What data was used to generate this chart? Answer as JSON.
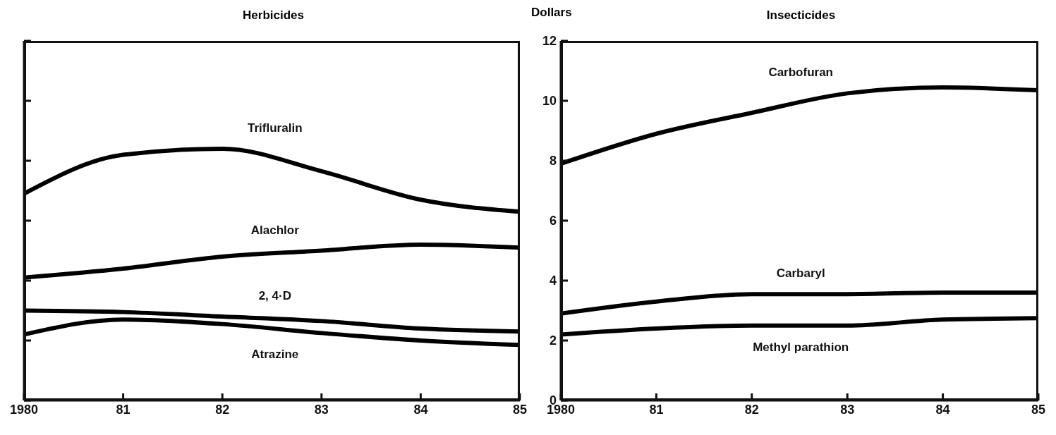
{
  "chart_data": [
    {
      "type": "line",
      "title": "Herbicides",
      "x": [
        1980,
        1981,
        1982,
        1983,
        1984,
        1985
      ],
      "xlim": [
        1980,
        1985
      ],
      "xticks": [
        1980,
        {
          "value": 1981,
          "label": "81"
        },
        {
          "value": 1982,
          "label": "82"
        },
        {
          "value": 1983,
          "label": "83"
        },
        {
          "value": 1984,
          "label": "84"
        },
        {
          "value": 1985,
          "label": "85"
        }
      ],
      "ylim": [
        0,
        12
      ],
      "yticks": [
        0,
        2,
        4,
        6,
        8,
        10,
        12
      ],
      "tick_labels": "x",
      "grid": false,
      "legend": false,
      "marker": "none",
      "line_style": "solid",
      "series": [
        {
          "name": "Trifluralin",
          "color": "#000000",
          "values": [
            6.9,
            8.2,
            8.4,
            7.65,
            6.7,
            6.3
          ]
        },
        {
          "name": "Alachlor",
          "color": "#000000",
          "values": [
            4.1,
            4.4,
            4.8,
            5.0,
            5.2,
            5.1
          ]
        },
        {
          "name": "2, 4·D",
          "color": "#000000",
          "values": [
            3.0,
            2.95,
            2.8,
            2.65,
            2.4,
            2.3
          ]
        },
        {
          "name": "Atrazine",
          "color": "#000000",
          "values": [
            2.2,
            2.7,
            2.55,
            2.25,
            2.0,
            1.85
          ]
        }
      ]
    },
    {
      "type": "line",
      "title": "Insecticides",
      "ylabel": "Dollars",
      "x": [
        1980,
        1981,
        1982,
        1983,
        1984,
        1985
      ],
      "xlim": [
        1980,
        1985
      ],
      "xticks": [
        1980,
        {
          "value": 1981,
          "label": "81"
        },
        {
          "value": 1982,
          "label": "82"
        },
        {
          "value": 1983,
          "label": "83"
        },
        {
          "value": 1984,
          "label": "84"
        },
        {
          "value": 1985,
          "label": "85"
        }
      ],
      "ylim": [
        0,
        12
      ],
      "yticks": [
        0,
        2,
        4,
        6,
        8,
        10,
        12
      ],
      "grid": false,
      "legend": false,
      "marker": "none",
      "line_style": "solid",
      "series": [
        {
          "name": "Carbofuran",
          "color": "#000000",
          "values": [
            7.9,
            8.9,
            9.6,
            10.25,
            10.45,
            10.35
          ]
        },
        {
          "name": "Carbaryl",
          "color": "#000000",
          "values": [
            2.9,
            3.3,
            3.55,
            3.55,
            3.6,
            3.6
          ]
        },
        {
          "name": "Methyl parathion",
          "color": "#000000",
          "values": [
            2.2,
            2.4,
            2.5,
            2.5,
            2.7,
            2.75
          ]
        }
      ]
    }
  ]
}
